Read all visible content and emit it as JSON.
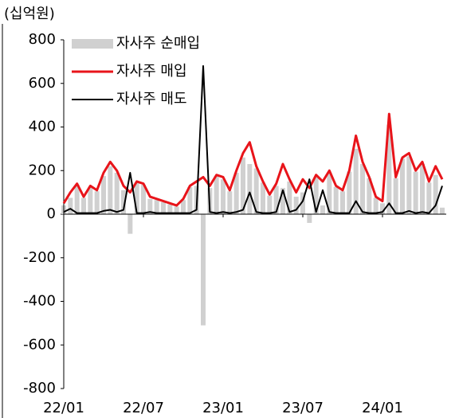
{
  "chart_data": {
    "type": "bar_line",
    "unit_label": "(십억원)",
    "x": [
      0,
      0.5,
      1,
      1.5,
      2,
      2.5,
      3,
      3.5,
      4,
      4.5,
      5,
      5.5,
      6,
      6.5,
      7,
      7.5,
      8,
      8.5,
      9,
      9.5,
      10,
      10.5,
      11,
      11.5,
      12,
      12.5,
      13,
      13.5,
      14,
      14.5,
      15,
      15.5,
      16,
      16.5,
      17,
      17.5,
      18,
      18.5,
      19,
      19.5,
      20,
      20.5,
      21,
      21.5,
      22,
      22.5,
      23,
      23.5,
      24,
      24.5,
      25,
      25.5,
      26,
      26.5,
      27,
      27.5,
      28,
      28.5
    ],
    "xlim": [
      0,
      28.8
    ],
    "xticks": [
      {
        "value": 0,
        "label": "22/01"
      },
      {
        "value": 6,
        "label": "22/07"
      },
      {
        "value": 12,
        "label": "23/01"
      },
      {
        "value": 18,
        "label": "23/07"
      },
      {
        "value": 24,
        "label": "24/01"
      }
    ],
    "ylim": [
      -800,
      800
    ],
    "yticks": [
      -800,
      -600,
      -400,
      -200,
      0,
      200,
      400,
      600,
      800
    ],
    "series": [
      {
        "name": "자사주 순매입",
        "kind": "bar",
        "color": "#d0d0d0",
        "values": [
          40,
          75,
          135,
          75,
          125,
          105,
          175,
          220,
          190,
          110,
          -90,
          145,
          135,
          70,
          65,
          55,
          45,
          35,
          65,
          125,
          130,
          -510,
          120,
          175,
          160,
          105,
          190,
          260,
          230,
          210,
          145,
          85,
          130,
          120,
          150,
          80,
          100,
          -40,
          170,
          40,
          190,
          125,
          105,
          195,
          300,
          230,
          165,
          75,
          50,
          410,
          165,
          255,
          265,
          195,
          230,
          145,
          180,
          30
        ]
      },
      {
        "name": "자사주 매입",
        "kind": "line",
        "color": "#e8141a",
        "values": [
          50,
          100,
          140,
          80,
          130,
          110,
          190,
          240,
          200,
          130,
          100,
          150,
          140,
          80,
          70,
          60,
          50,
          40,
          70,
          130,
          150,
          170,
          130,
          180,
          170,
          110,
          200,
          280,
          330,
          220,
          150,
          90,
          140,
          230,
          160,
          100,
          160,
          120,
          180,
          150,
          200,
          130,
          110,
          200,
          360,
          240,
          170,
          80,
          60,
          460,
          170,
          260,
          280,
          200,
          240,
          150,
          220,
          160
        ]
      },
      {
        "name": "자사주 매도",
        "kind": "line",
        "color": "#000000",
        "values": [
          10,
          25,
          5,
          5,
          5,
          5,
          15,
          20,
          10,
          20,
          190,
          5,
          5,
          10,
          5,
          5,
          5,
          5,
          5,
          5,
          20,
          680,
          10,
          5,
          10,
          5,
          10,
          20,
          100,
          10,
          5,
          5,
          10,
          110,
          10,
          20,
          60,
          160,
          10,
          110,
          10,
          5,
          5,
          5,
          60,
          10,
          5,
          5,
          10,
          50,
          5,
          5,
          15,
          5,
          10,
          5,
          40,
          130
        ]
      }
    ]
  }
}
